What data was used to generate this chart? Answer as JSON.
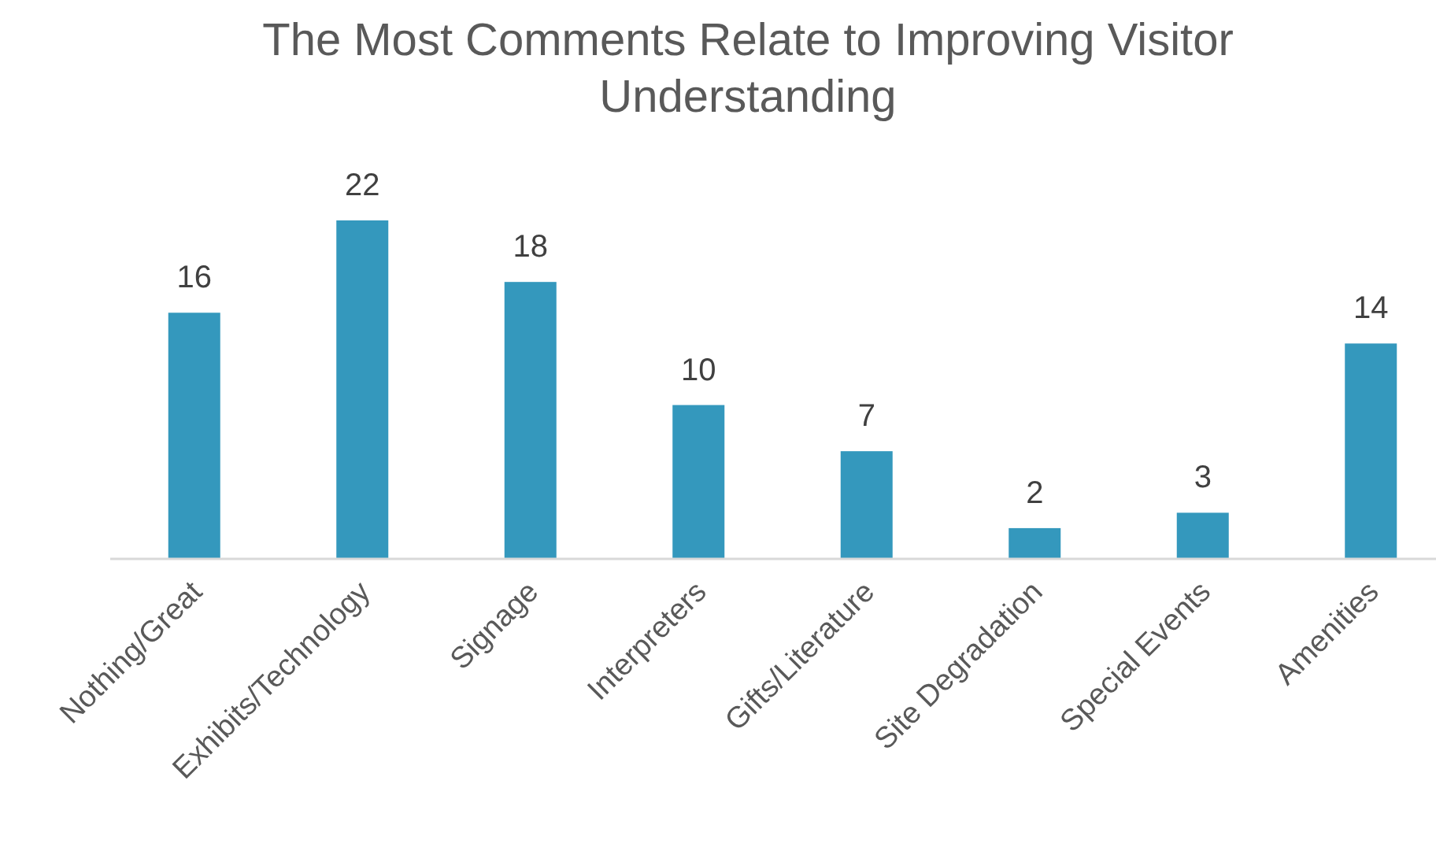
{
  "chart_data": {
    "type": "bar",
    "title": "The Most Comments Relate to Improving Visitor Understanding",
    "categories": [
      "Nothing/Great",
      "Exhibits/Technology",
      "Signage",
      "Interpreters",
      "Gifts/Literature",
      "Site Degradation",
      "Special Events",
      "Amenities"
    ],
    "values": [
      16,
      22,
      18,
      10,
      7,
      2,
      3,
      14
    ],
    "color": "#3498bd",
    "data_labels": true,
    "relative": false
  }
}
